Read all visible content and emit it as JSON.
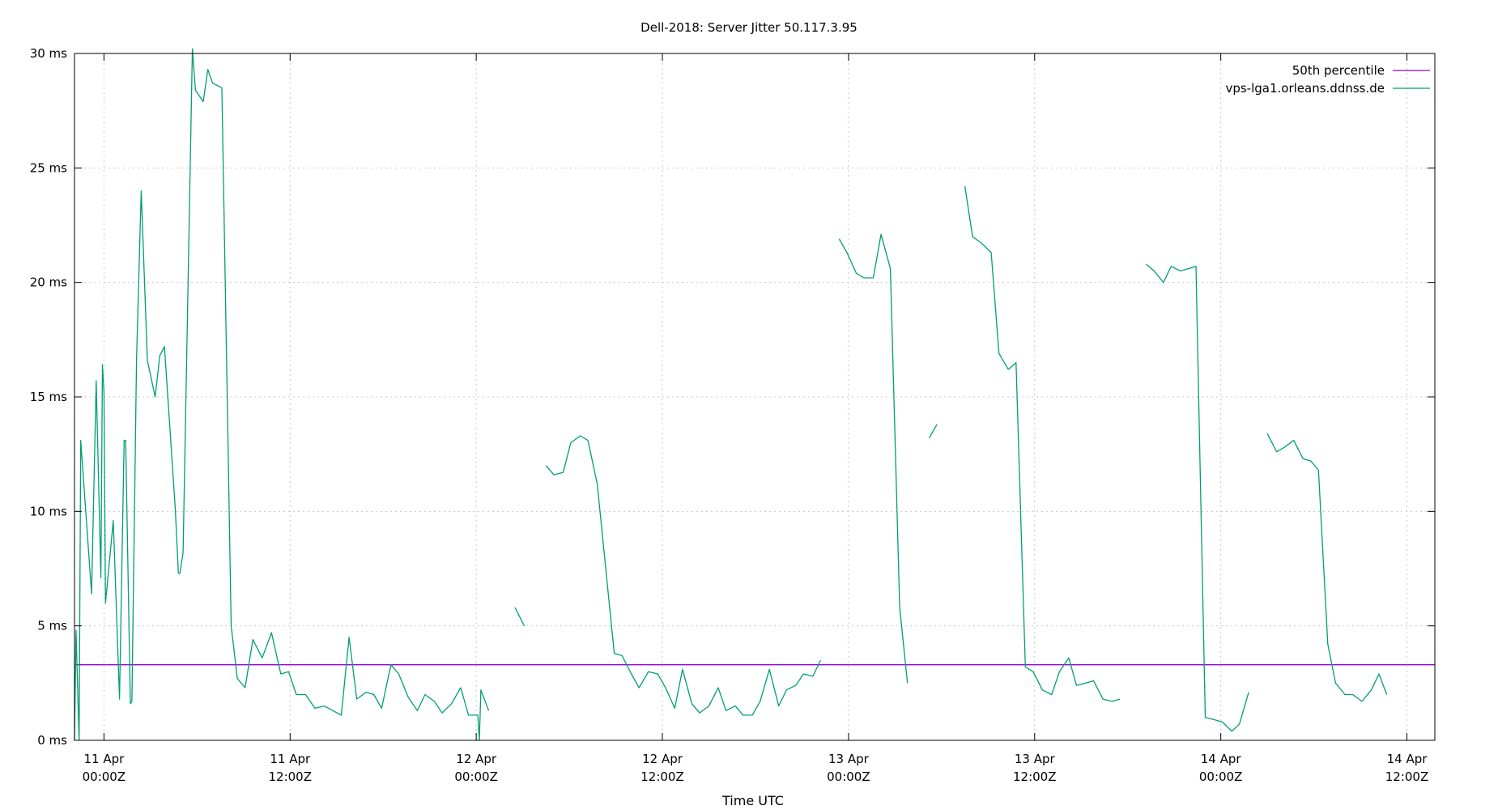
{
  "chart_data": {
    "type": "line",
    "title": "Dell-2018: Server Jitter 50.117.3.95",
    "xlabel": "Time UTC",
    "ylabel": "",
    "x_unit": "hours since 11 Apr 00:00Z",
    "xlim": [
      -1.9,
      85.8
    ],
    "ylim": [
      0,
      30
    ],
    "y_ticks": [
      {
        "value": 0,
        "label": "0 ms"
      },
      {
        "value": 5,
        "label": "5 ms"
      },
      {
        "value": 10,
        "label": "10 ms"
      },
      {
        "value": 15,
        "label": "15 ms"
      },
      {
        "value": 20,
        "label": "20 ms"
      },
      {
        "value": 25,
        "label": "25 ms"
      },
      {
        "value": 30,
        "label": "30 ms"
      }
    ],
    "x_ticks": [
      {
        "value": 0,
        "line1": "11 Apr",
        "line2": "00:00Z"
      },
      {
        "value": 12,
        "line1": "11 Apr",
        "line2": "12:00Z"
      },
      {
        "value": 24,
        "line1": "12 Apr",
        "line2": "00:00Z"
      },
      {
        "value": 36,
        "line1": "12 Apr",
        "line2": "12:00Z"
      },
      {
        "value": 48,
        "line1": "13 Apr",
        "line2": "00:00Z"
      },
      {
        "value": 60,
        "line1": "13 Apr",
        "line2": "12:00Z"
      },
      {
        "value": 72,
        "line1": "14 Apr",
        "line2": "00:00Z"
      },
      {
        "value": 84,
        "line1": "14 Apr",
        "line2": "12:00Z"
      }
    ],
    "grid": true,
    "legend_position": "top-right",
    "series": [
      {
        "name": "50th percentile",
        "color": "#9400d3",
        "segments": [
          [
            [
              -1.9,
              3.3
            ],
            [
              85.8,
              3.3
            ]
          ]
        ]
      },
      {
        "name": "vps-lga1.orleans.ddnss.de",
        "color": "#009e73",
        "segments": [
          [
            [
              -1.9,
              0
            ],
            [
              -1.8,
              4.8
            ],
            [
              -1.6,
              0
            ],
            [
              -1.5,
              13.1
            ],
            [
              -0.8,
              6.4
            ],
            [
              -0.5,
              15.7
            ],
            [
              -0.2,
              7.1
            ],
            [
              -0.1,
              16.4
            ],
            [
              0,
              15.2
            ],
            [
              0.1,
              6
            ],
            [
              0.6,
              9.6
            ],
            [
              1,
              1.8
            ],
            [
              1.3,
              13.1
            ],
            [
              1.4,
              13.1
            ],
            [
              1.7,
              1.6
            ],
            [
              1.8,
              1.7
            ],
            [
              2.1,
              16.6
            ],
            [
              2.4,
              24
            ],
            [
              2.8,
              16.6
            ],
            [
              3.3,
              15
            ],
            [
              3.6,
              16.8
            ],
            [
              3.9,
              17.2
            ],
            [
              4.6,
              10.1
            ],
            [
              4.8,
              7.3
            ],
            [
              4.9,
              7.3
            ],
            [
              5.1,
              8.2
            ],
            [
              5.7,
              30.2
            ],
            [
              5.9,
              28.4
            ],
            [
              6.4,
              27.9
            ],
            [
              6.7,
              29.3
            ],
            [
              7,
              28.7
            ],
            [
              7.6,
              28.5
            ],
            [
              8.2,
              5
            ],
            [
              8.6,
              2.7
            ],
            [
              9.1,
              2.3
            ],
            [
              9.6,
              4.4
            ],
            [
              10.2,
              3.6
            ],
            [
              10.8,
              4.7
            ],
            [
              11.4,
              2.9
            ],
            [
              11.9,
              3
            ],
            [
              12.4,
              2
            ],
            [
              13,
              2
            ],
            [
              13.6,
              1.4
            ],
            [
              14.2,
              1.5
            ],
            [
              15.3,
              1.1
            ],
            [
              15.8,
              4.5
            ],
            [
              16.3,
              1.8
            ],
            [
              16.9,
              2.1
            ],
            [
              17.4,
              2
            ],
            [
              17.9,
              1.4
            ],
            [
              18.5,
              3.3
            ],
            [
              19,
              2.9
            ],
            [
              19.6,
              1.9
            ],
            [
              20.2,
              1.3
            ],
            [
              20.7,
              2
            ],
            [
              21.3,
              1.7
            ],
            [
              21.8,
              1.2
            ],
            [
              22.4,
              1.6
            ],
            [
              23,
              2.3
            ],
            [
              23.5,
              1.1
            ],
            [
              24.1,
              1.1
            ],
            [
              24.2,
              0
            ],
            [
              24.3,
              2.2
            ],
            [
              24.8,
              1.3
            ]
          ],
          [
            [
              26.5,
              5.8
            ],
            [
              27.1,
              5
            ]
          ],
          [
            [
              28.5,
              12
            ],
            [
              29,
              11.6
            ],
            [
              29.6,
              11.7
            ],
            [
              30.1,
              13
            ],
            [
              30.7,
              13.3
            ],
            [
              31.2,
              13.1
            ],
            [
              31.8,
              11.2
            ],
            [
              32.9,
              3.8
            ],
            [
              33.4,
              3.7
            ],
            [
              34,
              2.9
            ],
            [
              34.5,
              2.3
            ],
            [
              35.1,
              3
            ],
            [
              35.7,
              2.9
            ],
            [
              36.2,
              2.3
            ],
            [
              36.8,
              1.4
            ],
            [
              37.3,
              3.1
            ],
            [
              37.9,
              1.6
            ],
            [
              38.4,
              1.2
            ],
            [
              39,
              1.5
            ],
            [
              39.6,
              2.3
            ],
            [
              40.1,
              1.3
            ],
            [
              40.7,
              1.5
            ],
            [
              41.2,
              1.1
            ],
            [
              41.8,
              1.1
            ],
            [
              42.3,
              1.7
            ],
            [
              42.9,
              3.1
            ],
            [
              43.5,
              1.5
            ],
            [
              44,
              2.2
            ],
            [
              44.6,
              2.4
            ],
            [
              45.1,
              2.9
            ],
            [
              45.7,
              2.8
            ],
            [
              46.2,
              3.5
            ]
          ],
          [
            [
              47.4,
              21.9
            ],
            [
              47.9,
              21.3
            ],
            [
              48.5,
              20.4
            ],
            [
              49,
              20.2
            ],
            [
              49.6,
              20.2
            ],
            [
              50.1,
              22.1
            ],
            [
              50.7,
              20.6
            ],
            [
              51.3,
              5.8
            ],
            [
              51.8,
              2.5
            ]
          ],
          [
            [
              53.2,
              13.2
            ],
            [
              53.7,
              13.8
            ]
          ],
          [
            [
              55.5,
              24.2
            ],
            [
              56,
              22
            ],
            [
              56.6,
              21.7
            ],
            [
              57.2,
              21.3
            ],
            [
              57.7,
              16.9
            ],
            [
              58.3,
              16.2
            ],
            [
              58.8,
              16.5
            ],
            [
              59.4,
              3.2
            ],
            [
              59.9,
              3
            ],
            [
              60.5,
              2.2
            ],
            [
              61.1,
              2
            ],
            [
              61.6,
              3
            ],
            [
              62.2,
              3.6
            ],
            [
              62.7,
              2.4
            ],
            [
              63.3,
              2.5
            ],
            [
              63.8,
              2.6
            ],
            [
              64.4,
              1.8
            ],
            [
              65,
              1.7
            ],
            [
              65.5,
              1.8
            ]
          ],
          [
            [
              67.2,
              20.8
            ],
            [
              67.7,
              20.5
            ],
            [
              68.3,
              20
            ],
            [
              68.8,
              20.7
            ],
            [
              69.4,
              20.5
            ],
            [
              69.9,
              20.6
            ],
            [
              70.4,
              20.7
            ],
            [
              71,
              1
            ],
            [
              71.6,
              0.9
            ],
            [
              72.1,
              0.8
            ],
            [
              72.7,
              0.4
            ],
            [
              73.2,
              0.7
            ],
            [
              73.8,
              2.1
            ]
          ],
          [
            [
              75,
              13.4
            ],
            [
              75.6,
              12.6
            ],
            [
              76.1,
              12.8
            ],
            [
              76.7,
              13.1
            ],
            [
              77.3,
              12.3
            ],
            [
              77.8,
              12.2
            ],
            [
              78.3,
              11.8
            ],
            [
              78.9,
              4.2
            ],
            [
              79.4,
              2.5
            ],
            [
              80,
              2
            ],
            [
              80.5,
              2
            ],
            [
              81.1,
              1.7
            ],
            [
              81.7,
              2.2
            ],
            [
              82.2,
              2.9
            ],
            [
              82.7,
              2
            ]
          ]
        ]
      }
    ]
  }
}
